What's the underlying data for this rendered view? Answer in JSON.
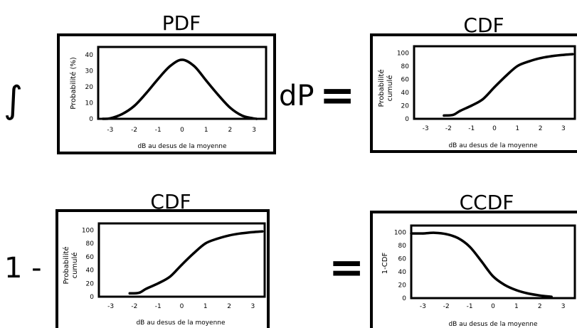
{
  "operators": {
    "integral": "∫",
    "dP": "dP",
    "equals": "=",
    "one_minus": "1 -"
  },
  "xticks": [
    "-3",
    "-2",
    "-1",
    "0",
    "1",
    "2",
    "3"
  ],
  "chart_data": [
    {
      "type": "line",
      "title": "PDF",
      "xlabel": "dB au desus de la moyenne",
      "ylabel": [
        "Probabilité (%)"
      ],
      "xlim": [
        -3.5,
        3.5
      ],
      "ylim": [
        0,
        45
      ],
      "yticks": [
        0,
        10,
        20,
        30,
        40
      ],
      "x": [
        -3.3,
        -3,
        -2.5,
        -2,
        -1.5,
        -1,
        -0.5,
        0,
        0.5,
        1,
        1.5,
        2,
        2.5,
        2.9,
        3.1
      ],
      "values": [
        0,
        0.3,
        3,
        8,
        16,
        25,
        33,
        37,
        33,
        24,
        15,
        7,
        2,
        0.5,
        0
      ]
    },
    {
      "type": "line",
      "title": "CDF",
      "xlabel": "dB au desus de la moyenne",
      "ylabel": [
        "Probabilité",
        "cumulé"
      ],
      "xlim": [
        -3.5,
        3.5
      ],
      "ylim": [
        0,
        110
      ],
      "yticks": [
        0,
        20,
        40,
        60,
        80,
        100
      ],
      "x": [
        -2.2,
        -1.8,
        -1.5,
        -1,
        -0.5,
        0,
        0.5,
        1,
        1.5,
        2,
        2.5,
        3,
        3.4
      ],
      "values": [
        5,
        6,
        12,
        20,
        30,
        48,
        65,
        80,
        87,
        92,
        95,
        97,
        98
      ]
    },
    {
      "type": "line",
      "title": "CDF",
      "xlabel": "dB au desus de la moyenne",
      "ylabel": [
        "Probabilité",
        "cumulé"
      ],
      "xlim": [
        -3.5,
        3.5
      ],
      "ylim": [
        0,
        110
      ],
      "yticks": [
        0,
        20,
        40,
        60,
        80,
        100
      ],
      "x": [
        -2.2,
        -1.8,
        -1.5,
        -1,
        -0.5,
        0,
        0.5,
        1,
        1.5,
        2,
        2.5,
        3,
        3.4
      ],
      "values": [
        5,
        6,
        12,
        20,
        30,
        48,
        65,
        80,
        87,
        92,
        95,
        97,
        98
      ]
    },
    {
      "type": "line",
      "title": "CCDF",
      "xlabel": "dB au desus de la moyenne",
      "ylabel": [
        "1-CDF"
      ],
      "xlim": [
        -3.5,
        3.5
      ],
      "ylim": [
        0,
        110
      ],
      "yticks": [
        0,
        20,
        40,
        60,
        80,
        100
      ],
      "x": [
        -3.5,
        -3,
        -2.5,
        -2,
        -1.5,
        -1,
        -0.5,
        0,
        0.5,
        1,
        1.5,
        2,
        2.5
      ],
      "values": [
        98,
        98,
        99,
        97,
        91,
        78,
        56,
        33,
        20,
        12,
        7,
        4,
        2
      ]
    }
  ]
}
